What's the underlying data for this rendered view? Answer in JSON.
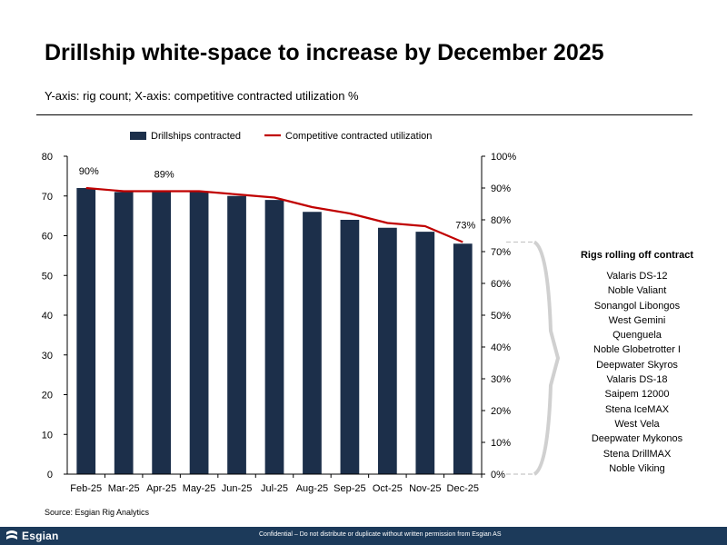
{
  "header": {
    "title": "Drillship white-space to increase by December 2025",
    "subtitle": "Y-axis: rig count; X-axis: competitive contracted utilization %"
  },
  "chart_data": {
    "type": "bar",
    "categories": [
      "Feb-25",
      "Mar-25",
      "Apr-25",
      "May-25",
      "Jun-25",
      "Jul-25",
      "Aug-25",
      "Sep-25",
      "Oct-25",
      "Nov-25",
      "Dec-25"
    ],
    "series": [
      {
        "name": "Drillships contracted",
        "type": "bar",
        "axis": "left",
        "color": "#1c2f4a",
        "values": [
          72,
          71,
          71,
          71,
          70,
          69,
          66,
          64,
          62,
          61,
          58
        ]
      },
      {
        "name": "Competitive contracted utilization",
        "type": "line",
        "axis": "right",
        "color": "#c00000",
        "values": [
          90,
          89,
          89,
          89,
          88,
          87,
          84,
          82,
          79,
          78,
          73
        ]
      }
    ],
    "data_labels": [
      {
        "index": 0,
        "text": "90%"
      },
      {
        "index": 2,
        "text": "89%"
      },
      {
        "index": 10,
        "text": "73%"
      }
    ],
    "yleft": {
      "lim": [
        0,
        80
      ],
      "ticks": [
        "0",
        "10",
        "20",
        "30",
        "40",
        "50",
        "60",
        "70",
        "80"
      ]
    },
    "yright": {
      "lim": [
        0,
        100
      ],
      "ticks": [
        "0%",
        "10%",
        "20%",
        "30%",
        "40%",
        "50%",
        "60%",
        "70%",
        "80%",
        "90%",
        "100%"
      ]
    },
    "legend_position": "top-center",
    "grid": false
  },
  "side_panel": {
    "title": "Rigs rolling off contract",
    "rigs": [
      "Valaris DS-12",
      "Noble Valiant",
      "Sonangol Libongos",
      "West Gemini",
      "Quenguela",
      "Noble Globetrotter I",
      "Deepwater Skyros",
      "Valaris DS-18",
      "Saipem 12000",
      "Stena IceMAX",
      "West Vela",
      "Deepwater Mykonos",
      "Stena DrillMAX",
      "Noble Viking"
    ]
  },
  "source": "Source: Esgian Rig Analytics",
  "footer": {
    "logo_text": "Esgian",
    "confidential": "Confidential – Do not distribute or duplicate without written permission from Esgian AS",
    "background": "#1c3a5a"
  }
}
